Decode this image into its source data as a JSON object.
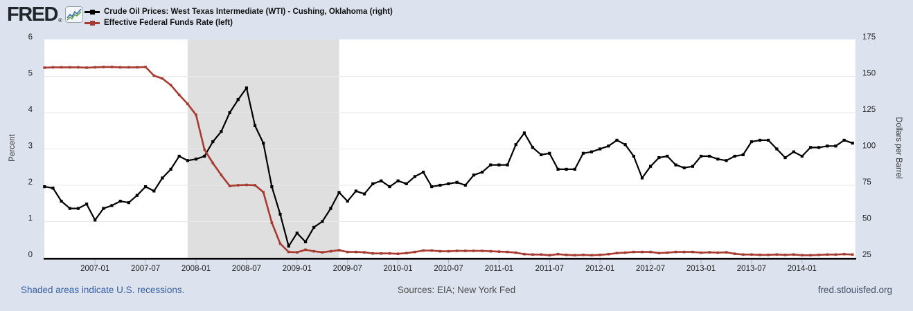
{
  "header": {
    "logo_text": "FRED",
    "logo_reg": "®"
  },
  "icons": {
    "fred_logo_sparkline": "zigzag-line-chart-icon"
  },
  "legend": {
    "series": [
      {
        "label": "Crude Oil Prices: West Texas Intermediate (WTI) - Cushing, Oklahoma (right)",
        "color": "#000000"
      },
      {
        "label": "Effective Federal Funds Rate (left)",
        "color": "#a73b32"
      }
    ]
  },
  "footer": {
    "note": "Shaded areas indicate U.S. recessions.",
    "sources": "Sources: EIA; New York Fed",
    "site": "fred.stlouisfed.org"
  },
  "colors": {
    "page_background": "#dce3ee",
    "plot_background": "#ffffff",
    "recession_band": "#dfdfdf",
    "gridline": "#e9e9e9",
    "axis_line": "#000000",
    "tick_mark": "#a9b8cf",
    "wti_series": "#000000",
    "fedfunds_series": "#a73b32",
    "footer_note_text": "#38609f"
  },
  "chart_data": {
    "type": "line",
    "frequency": "monthly",
    "x_start": "2006-07",
    "x_end": "2014-07",
    "x_tick_labels": [
      "2007-01",
      "2007-07",
      "2008-01",
      "2008-07",
      "2009-01",
      "2009-07",
      "2010-01",
      "2010-07",
      "2011-01",
      "2011-07",
      "2012-01",
      "2012-07",
      "2013-01",
      "2013-07",
      "2014-01"
    ],
    "y_left": {
      "label": "Percent",
      "min": 0,
      "max": 6,
      "ticks": [
        0,
        1,
        2,
        3,
        4,
        5,
        6
      ]
    },
    "y_right": {
      "label": "Dollars per Barrel",
      "min": 25,
      "max": 175,
      "ticks": [
        25,
        50,
        75,
        100,
        125,
        150,
        175
      ]
    },
    "recession_band": {
      "from": "2007-12",
      "to": "2009-06",
      "meaning": "U.S. recession"
    },
    "legend_position": "top-left",
    "grid": "horizontal-only",
    "series": [
      {
        "name": "Crude Oil Prices: West Texas Intermediate (WTI) - Cushing, Oklahoma",
        "axis": "right",
        "unit": "Dollars per Barrel",
        "color": "#000000",
        "values": [
          74,
          73,
          64,
          59,
          59,
          62,
          51,
          59,
          61,
          64,
          63,
          68,
          74,
          71,
          80,
          86,
          95,
          92,
          93,
          95,
          105,
          112,
          125,
          134,
          142,
          116,
          104,
          74,
          55,
          33,
          42,
          36,
          46,
          50,
          59,
          70,
          64,
          71,
          69,
          76,
          78,
          74,
          78,
          76,
          81,
          84,
          74,
          75,
          76,
          77,
          75,
          82,
          84,
          89,
          89,
          89,
          103,
          111,
          101,
          96,
          97,
          86,
          86,
          86,
          97,
          98,
          100,
          102,
          106,
          103,
          95,
          80,
          88,
          94,
          95,
          89,
          87,
          88,
          95,
          95,
          93,
          92,
          95,
          96,
          105,
          106,
          106,
          100,
          94,
          98,
          95,
          101,
          101,
          102,
          102,
          106,
          104
        ]
      },
      {
        "name": "Effective Federal Funds Rate",
        "axis": "left",
        "unit": "Percent",
        "color": "#a73b32",
        "values": [
          5.24,
          5.25,
          5.25,
          5.25,
          5.25,
          5.24,
          5.25,
          5.26,
          5.26,
          5.25,
          5.25,
          5.25,
          5.26,
          5.02,
          4.94,
          4.76,
          4.49,
          4.24,
          3.94,
          2.98,
          2.61,
          2.28,
          1.98,
          2.0,
          2.01,
          2.0,
          1.81,
          0.97,
          0.39,
          0.16,
          0.15,
          0.22,
          0.18,
          0.15,
          0.18,
          0.21,
          0.16,
          0.16,
          0.15,
          0.12,
          0.12,
          0.12,
          0.11,
          0.13,
          0.16,
          0.2,
          0.2,
          0.18,
          0.18,
          0.19,
          0.19,
          0.19,
          0.19,
          0.18,
          0.17,
          0.16,
          0.14,
          0.1,
          0.09,
          0.09,
          0.07,
          0.1,
          0.08,
          0.07,
          0.08,
          0.07,
          0.08,
          0.1,
          0.13,
          0.14,
          0.16,
          0.16,
          0.16,
          0.13,
          0.14,
          0.16,
          0.16,
          0.16,
          0.14,
          0.15,
          0.14,
          0.15,
          0.11,
          0.09,
          0.09,
          0.08,
          0.08,
          0.09,
          0.08,
          0.09,
          0.07,
          0.07,
          0.08,
          0.09,
          0.09,
          0.1,
          0.09
        ]
      }
    ]
  }
}
